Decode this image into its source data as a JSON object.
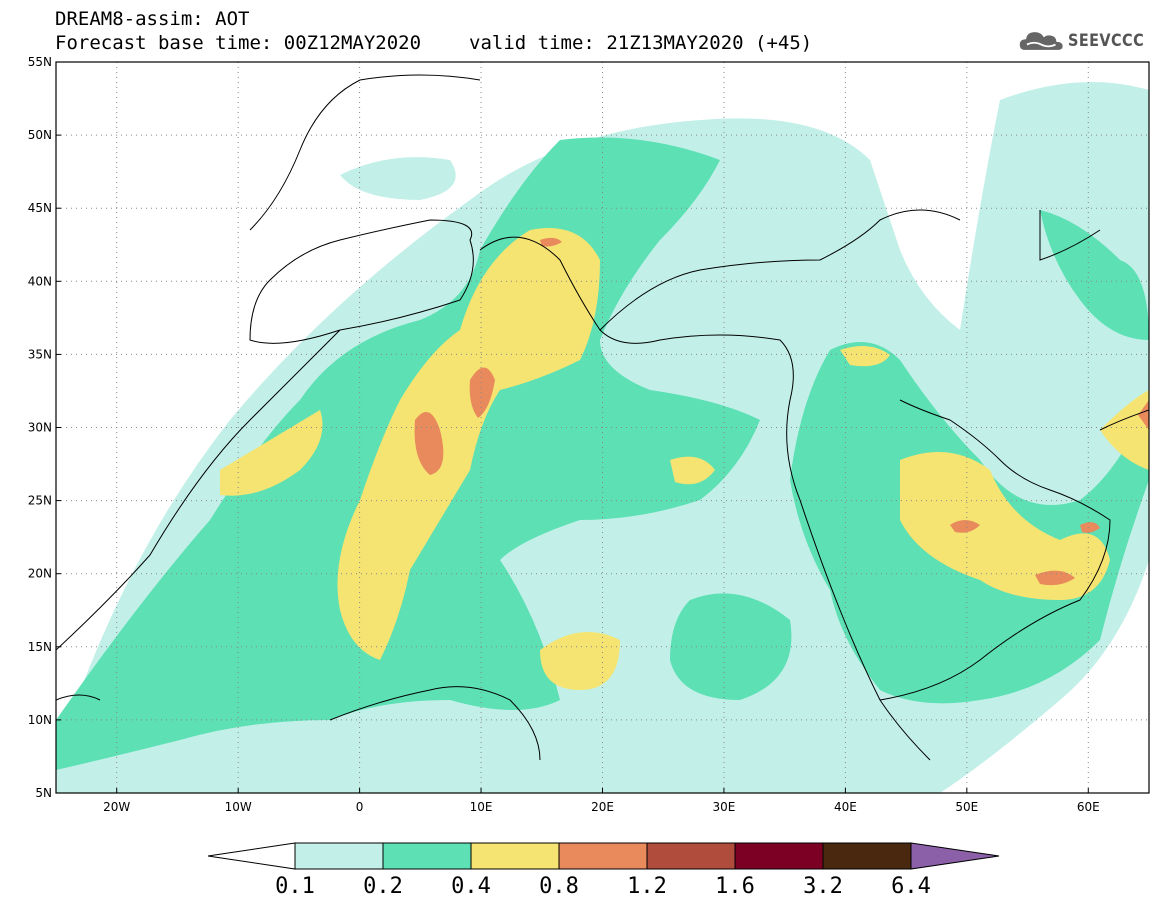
{
  "header": {
    "line1": "DREAM8-assim: AOT",
    "forecast_base": "Forecast base time: 00Z12MAY2020",
    "valid_time": "valid time: 21Z13MAY2020 (+45)"
  },
  "logo": {
    "text": "SEEVCCC",
    "icon": "cloud-icon"
  },
  "map": {
    "lon_range": [
      -25,
      65
    ],
    "lat_range": [
      5,
      55
    ],
    "lat_ticks": [
      "55N",
      "50N",
      "45N",
      "40N",
      "35N",
      "30N",
      "25N",
      "20N",
      "15N",
      "10N",
      "5N"
    ],
    "lon_ticks": [
      "20W",
      "10W",
      "0",
      "10E",
      "20E",
      "30E",
      "40E",
      "50E",
      "60E"
    ]
  },
  "colorbar": {
    "levels": [
      "0.1",
      "0.2",
      "0.4",
      "0.8",
      "1.2",
      "1.6",
      "3.2",
      "6.4"
    ],
    "colors": [
      "#ffffff",
      "#c2f0e8",
      "#5ce0b4",
      "#f5e472",
      "#e88a5c",
      "#b04c3c",
      "#7c0024",
      "#4a2810",
      "#8c60a8"
    ]
  }
}
